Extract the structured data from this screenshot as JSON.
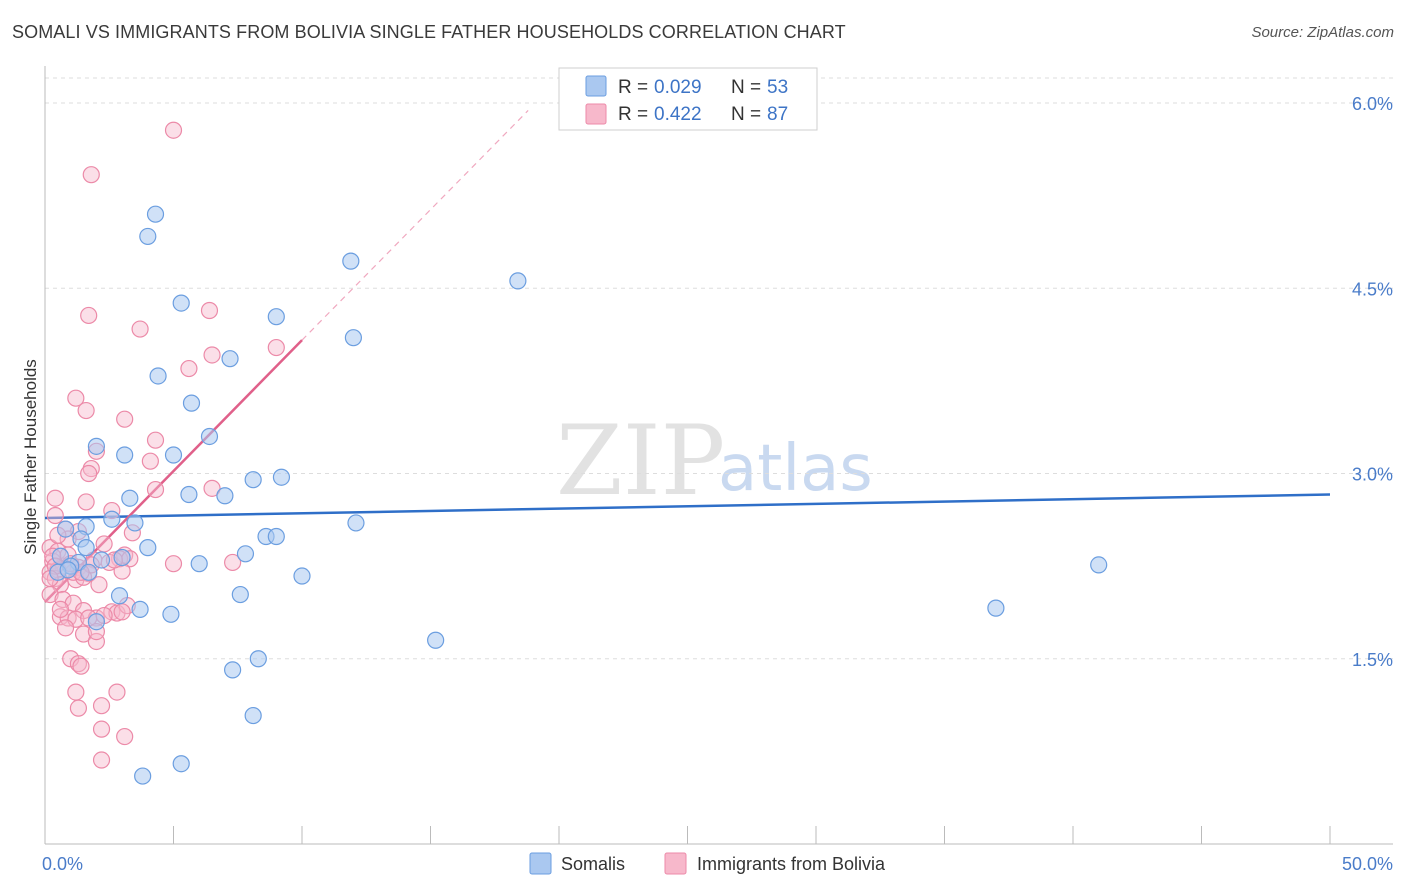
{
  "title": "SOMALI VS IMMIGRANTS FROM BOLIVIA SINGLE FATHER HOUSEHOLDS CORRELATION CHART",
  "source": "Source: ZipAtlas.com",
  "watermark": {
    "zip": "ZIP",
    "atlas": "atlas"
  },
  "legend": {
    "items": [
      {
        "r_label": "R =",
        "r_value": "0.029",
        "n_label": "N =",
        "n_value": "53"
      },
      {
        "r_label": "R =",
        "r_value": "0.422",
        "n_label": "N =",
        "n_value": "87"
      }
    ]
  },
  "colors": {
    "blue_fill": "#aac8f0",
    "blue_stroke": "#6b9ee0",
    "blue_line": "#2f6fc8",
    "pink_fill": "#f7b8cb",
    "pink_stroke": "#ec8aa8",
    "pink_line": "#e0608a",
    "grid": "#dddddd",
    "tick_text": "#4a7cc9"
  },
  "chart_data": {
    "type": "scatter",
    "title": "SOMALI VS IMMIGRANTS FROM BOLIVIA SINGLE FATHER HOUSEHOLDS CORRELATION CHART",
    "xlabel": "",
    "ylabel": "Single Father Households",
    "xlim": [
      0,
      50
    ],
    "ylim": [
      0,
      6.3
    ],
    "x_tick_labels": [
      "0.0%",
      "50.0%"
    ],
    "y_ticks": [
      1.5,
      3.0,
      4.5,
      6.0
    ],
    "y_tick_labels": [
      "1.5%",
      "3.0%",
      "4.5%",
      "6.0%"
    ],
    "grid": true,
    "series": [
      {
        "name": "Somalis",
        "R": 0.029,
        "N": 53,
        "trend": {
          "x0": 0,
          "y0": 2.64,
          "x1": 50,
          "y1": 2.83
        },
        "points": [
          [
            4.3,
            5.1
          ],
          [
            4.0,
            4.92
          ],
          [
            11.9,
            4.72
          ],
          [
            18.4,
            4.56
          ],
          [
            5.3,
            4.38
          ],
          [
            9.0,
            4.27
          ],
          [
            12.0,
            4.1
          ],
          [
            7.2,
            3.93
          ],
          [
            4.4,
            3.79
          ],
          [
            5.7,
            3.57
          ],
          [
            6.4,
            3.3
          ],
          [
            2.0,
            3.22
          ],
          [
            3.1,
            3.15
          ],
          [
            5.0,
            3.15
          ],
          [
            9.2,
            2.97
          ],
          [
            8.1,
            2.95
          ],
          [
            3.3,
            2.8
          ],
          [
            5.6,
            2.83
          ],
          [
            7.0,
            2.82
          ],
          [
            2.6,
            2.63
          ],
          [
            3.5,
            2.6
          ],
          [
            12.1,
            2.6
          ],
          [
            1.6,
            2.57
          ],
          [
            0.8,
            2.55
          ],
          [
            1.4,
            2.47
          ],
          [
            8.6,
            2.49
          ],
          [
            9.0,
            2.49
          ],
          [
            4.0,
            2.4
          ],
          [
            7.8,
            2.35
          ],
          [
            0.6,
            2.33
          ],
          [
            1.3,
            2.28
          ],
          [
            2.2,
            2.3
          ],
          [
            3.0,
            2.32
          ],
          [
            6.0,
            2.27
          ],
          [
            1.0,
            2.25
          ],
          [
            0.5,
            2.2
          ],
          [
            1.7,
            2.2
          ],
          [
            10.0,
            2.17
          ],
          [
            41.0,
            2.26
          ],
          [
            2.9,
            2.01
          ],
          [
            7.6,
            2.02
          ],
          [
            3.7,
            1.9
          ],
          [
            4.9,
            1.86
          ],
          [
            2.0,
            1.8
          ],
          [
            37.0,
            1.91
          ],
          [
            15.2,
            1.65
          ],
          [
            8.3,
            1.5
          ],
          [
            7.3,
            1.41
          ],
          [
            8.1,
            1.04
          ],
          [
            5.3,
            0.65
          ],
          [
            3.8,
            0.55
          ],
          [
            1.6,
            2.4
          ],
          [
            0.9,
            2.22
          ]
        ]
      },
      {
        "name": "Immigrants from Bolivia",
        "R": 0.422,
        "N": 87,
        "trend": {
          "x0": 0,
          "y0": 1.96,
          "x1": 10.0,
          "y1": 4.08,
          "dash_x1": 18.8,
          "dash_y1": 5.94
        },
        "points": [
          [
            5.0,
            5.78
          ],
          [
            1.8,
            5.42
          ],
          [
            6.4,
            4.32
          ],
          [
            1.7,
            4.28
          ],
          [
            3.7,
            4.17
          ],
          [
            9.0,
            4.02
          ],
          [
            6.5,
            3.96
          ],
          [
            5.6,
            3.85
          ],
          [
            1.2,
            3.61
          ],
          [
            1.6,
            3.51
          ],
          [
            3.1,
            3.44
          ],
          [
            4.3,
            3.27
          ],
          [
            2.0,
            3.18
          ],
          [
            4.1,
            3.1
          ],
          [
            1.8,
            3.04
          ],
          [
            1.7,
            3.0
          ],
          [
            6.5,
            2.88
          ],
          [
            4.3,
            2.87
          ],
          [
            0.4,
            2.8
          ],
          [
            1.6,
            2.77
          ],
          [
            2.6,
            2.7
          ],
          [
            0.4,
            2.66
          ],
          [
            0.8,
            2.55
          ],
          [
            1.3,
            2.53
          ],
          [
            3.4,
            2.52
          ],
          [
            0.9,
            2.47
          ],
          [
            2.3,
            2.43
          ],
          [
            0.2,
            2.4
          ],
          [
            0.5,
            2.37
          ],
          [
            3.1,
            2.34
          ],
          [
            1.9,
            2.3
          ],
          [
            2.9,
            2.31
          ],
          [
            2.5,
            2.28
          ],
          [
            3.3,
            2.31
          ],
          [
            0.3,
            2.29
          ],
          [
            0.7,
            2.25
          ],
          [
            1.3,
            2.24
          ],
          [
            5.0,
            2.27
          ],
          [
            7.3,
            2.28
          ],
          [
            0.2,
            2.2
          ],
          [
            0.5,
            2.22
          ],
          [
            1.7,
            2.19
          ],
          [
            3.0,
            2.21
          ],
          [
            0.4,
            2.15
          ],
          [
            1.2,
            2.14
          ],
          [
            0.6,
            2.1
          ],
          [
            2.1,
            2.1
          ],
          [
            0.2,
            2.02
          ],
          [
            0.7,
            1.98
          ],
          [
            1.1,
            1.95
          ],
          [
            1.5,
            1.89
          ],
          [
            0.6,
            1.84
          ],
          [
            2.6,
            1.88
          ],
          [
            0.9,
            1.83
          ],
          [
            2.0,
            1.83
          ],
          [
            2.8,
            1.87
          ],
          [
            1.2,
            1.82
          ],
          [
            3.2,
            1.93
          ],
          [
            1.7,
            1.83
          ],
          [
            0.8,
            1.75
          ],
          [
            1.5,
            1.7
          ],
          [
            2.0,
            1.64
          ],
          [
            1.0,
            1.5
          ],
          [
            1.3,
            1.46
          ],
          [
            1.4,
            1.44
          ],
          [
            1.2,
            1.23
          ],
          [
            2.8,
            1.23
          ],
          [
            2.2,
            1.12
          ],
          [
            1.3,
            1.1
          ],
          [
            2.2,
            0.93
          ],
          [
            3.1,
            0.87
          ],
          [
            2.2,
            0.68
          ],
          [
            0.3,
            2.33
          ],
          [
            0.9,
            2.34
          ],
          [
            1.1,
            2.2
          ],
          [
            1.5,
            2.16
          ],
          [
            2.7,
            2.3
          ],
          [
            0.4,
            2.25
          ],
          [
            0.2,
            2.15
          ],
          [
            2.3,
            1.85
          ],
          [
            1.8,
            2.26
          ],
          [
            0.6,
            1.9
          ],
          [
            2.0,
            1.72
          ],
          [
            1.0,
            2.27
          ],
          [
            3.0,
            1.88
          ],
          [
            0.5,
            2.5
          ],
          [
            1.4,
            2.2
          ]
        ]
      }
    ],
    "bottom_legend": [
      "Somalis",
      "Immigrants from Bolivia"
    ]
  }
}
